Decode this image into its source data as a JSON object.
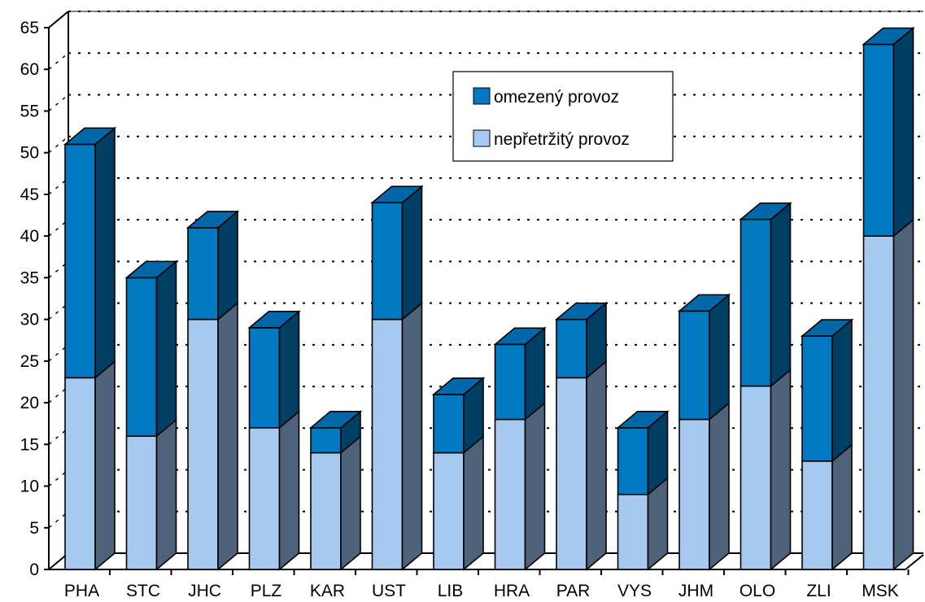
{
  "chart_data": {
    "type": "bar",
    "stacked": true,
    "three_d": true,
    "categories": [
      "PHA",
      "STC",
      "JHC",
      "PLZ",
      "KAR",
      "UST",
      "LIB",
      "HRA",
      "PAR",
      "VYS",
      "JHM",
      "OLO",
      "ZLI",
      "MSK"
    ],
    "series": [
      {
        "name": "nepřetržitý provoz",
        "values": [
          23,
          16,
          30,
          17,
          14,
          30,
          14,
          18,
          23,
          9,
          18,
          22,
          13,
          40
        ]
      },
      {
        "name": "omezený provoz",
        "values": [
          28,
          19,
          11,
          12,
          3,
          14,
          7,
          9,
          7,
          8,
          13,
          20,
          15,
          23
        ]
      }
    ],
    "ylim": [
      0,
      65
    ],
    "yticks": [
      0,
      5,
      10,
      15,
      20,
      25,
      30,
      35,
      40,
      45,
      50,
      55,
      60,
      65
    ],
    "grid": true,
    "legend_placement": "top-center"
  },
  "colors": {
    "light_front": "#a7c9ef",
    "light_side": "#4e6279",
    "dark_front": "#0079c2",
    "dark_side": "#003f64",
    "dark_top": "#0067a8",
    "outline": "#000000"
  }
}
